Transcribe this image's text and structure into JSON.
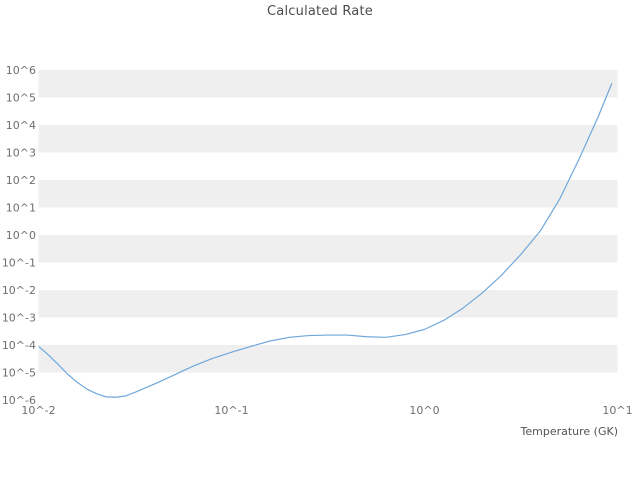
{
  "chart_data": {
    "type": "line",
    "title": "Calculated Rate",
    "xlabel": "Temperature (GK)",
    "ylabel": "",
    "x_scale": "log",
    "y_scale": "log",
    "xlim": [
      0.01,
      10
    ],
    "ylim": [
      1e-06,
      1000000.0
    ],
    "grid": "alternating-horizontal-bands",
    "legend": "none",
    "band_color": "#efefef",
    "background_color": "#ffffff",
    "line_color": "#6fa8dc",
    "x_tick_labels": [
      "10^-2",
      "10^-1",
      "10^0",
      "10^1"
    ],
    "x_tick_exps": [
      -2,
      -1,
      0,
      1
    ],
    "y_tick_labels": [
      "10^6",
      "10^5",
      "10^4",
      "10^3",
      "10^2",
      "10^1",
      "10^0",
      "10^-1",
      "10^-2",
      "10^-3",
      "10^-4",
      "10^-5",
      "10^-6"
    ],
    "y_tick_exps": [
      6,
      5,
      4,
      3,
      2,
      1,
      0,
      -1,
      -2,
      -3,
      -4,
      -5,
      -6
    ],
    "series": [
      {
        "name": "calculated-rate",
        "x": [
          0.01,
          0.0112,
          0.0126,
          0.0141,
          0.0158,
          0.0178,
          0.02,
          0.0224,
          0.0251,
          0.0282,
          0.0316,
          0.0398,
          0.0501,
          0.0631,
          0.0794,
          0.1,
          0.1259,
          0.1585,
          0.1995,
          0.2512,
          0.3162,
          0.3981,
          0.5012,
          0.631,
          0.7943,
          1.0,
          1.2589,
          1.5849,
          1.9953,
          2.5119,
          3.1623,
          3.9811,
          5.0119,
          6.3096,
          7.9433,
          9.3325
        ],
        "y": [
          8.9e-05,
          4.5e-05,
          2e-05,
          8.9e-06,
          4.5e-06,
          2.5e-06,
          1.7e-06,
          1.3e-06,
          1.26e-06,
          1.4e-06,
          1.9e-06,
          3.8e-06,
          7.9e-06,
          1.7e-05,
          3.2e-05,
          5.5e-05,
          8.9e-05,
          0.00014,
          0.00019,
          0.00022,
          0.00023,
          0.00023,
          0.0002,
          0.00019,
          0.00024,
          0.00037,
          0.00079,
          0.0022,
          0.0079,
          0.035,
          0.2,
          1.4,
          20.0,
          560.0,
          20000.0,
          320000.0
        ]
      }
    ]
  }
}
